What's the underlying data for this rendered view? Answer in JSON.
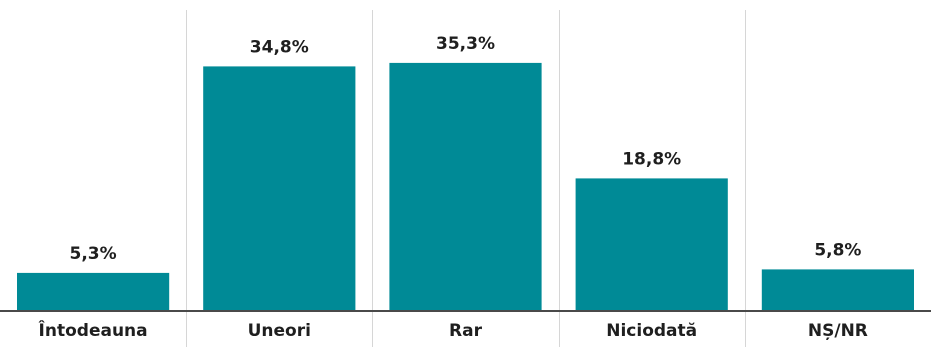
{
  "chart_data": {
    "type": "bar",
    "categories": [
      "Întodeauna",
      "Uneori",
      "Rar",
      "Niciodată",
      "NȘ/NR"
    ],
    "values": [
      5.3,
      34.8,
      35.3,
      18.8,
      5.8
    ],
    "value_labels": [
      "5,3%",
      "34,8%",
      "35,3%",
      "18,8%",
      "5,8%"
    ],
    "title": "",
    "xlabel": "",
    "ylabel": "",
    "ylim": [
      0,
      40
    ],
    "grid": "vertical separators",
    "legend": "none",
    "colors": {
      "bar": "#008a96",
      "separator": "#d6d6d6",
      "baseline": "#4a4a4a",
      "text": "#1f1f1f"
    }
  }
}
